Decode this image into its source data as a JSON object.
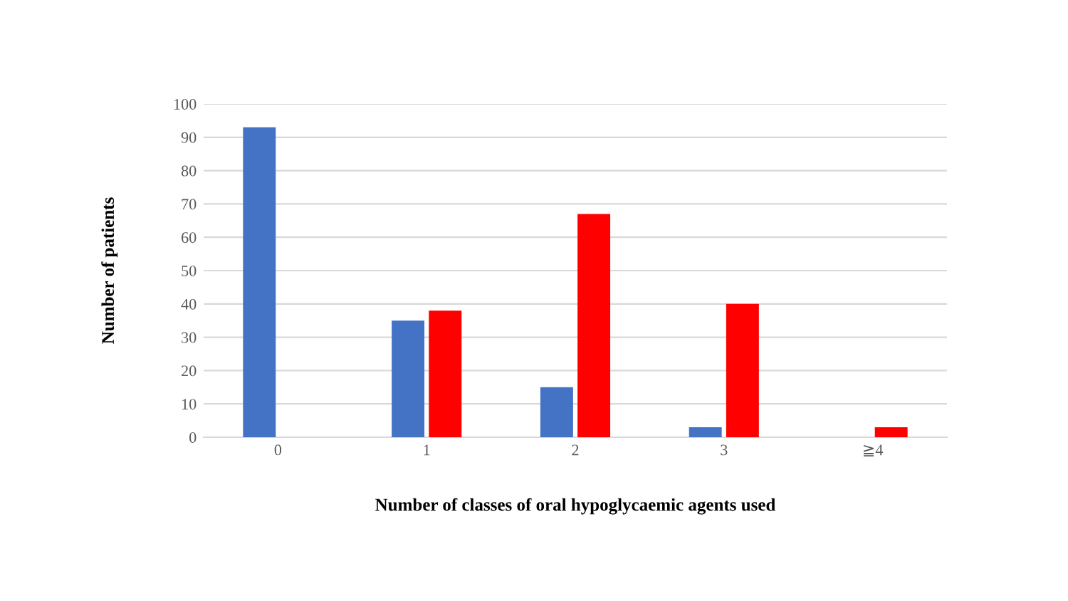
{
  "chart_data": {
    "type": "bar",
    "xlabel": "Number of classes of oral hypoglycaemic agents used",
    "ylabel": "Number of patients",
    "categories": [
      "0",
      "1",
      "2",
      "3",
      "≧4"
    ],
    "series": [
      {
        "color": "#4472c4",
        "values": [
          93,
          35,
          15,
          3,
          null
        ]
      },
      {
        "color": "#ff0000",
        "values": [
          null,
          38,
          67,
          40,
          3
        ]
      }
    ],
    "ylim": [
      0,
      100
    ],
    "yticks": [
      0,
      10,
      20,
      30,
      40,
      50,
      60,
      70,
      80,
      90,
      100
    ],
    "grid": "y",
    "legend": false
  }
}
